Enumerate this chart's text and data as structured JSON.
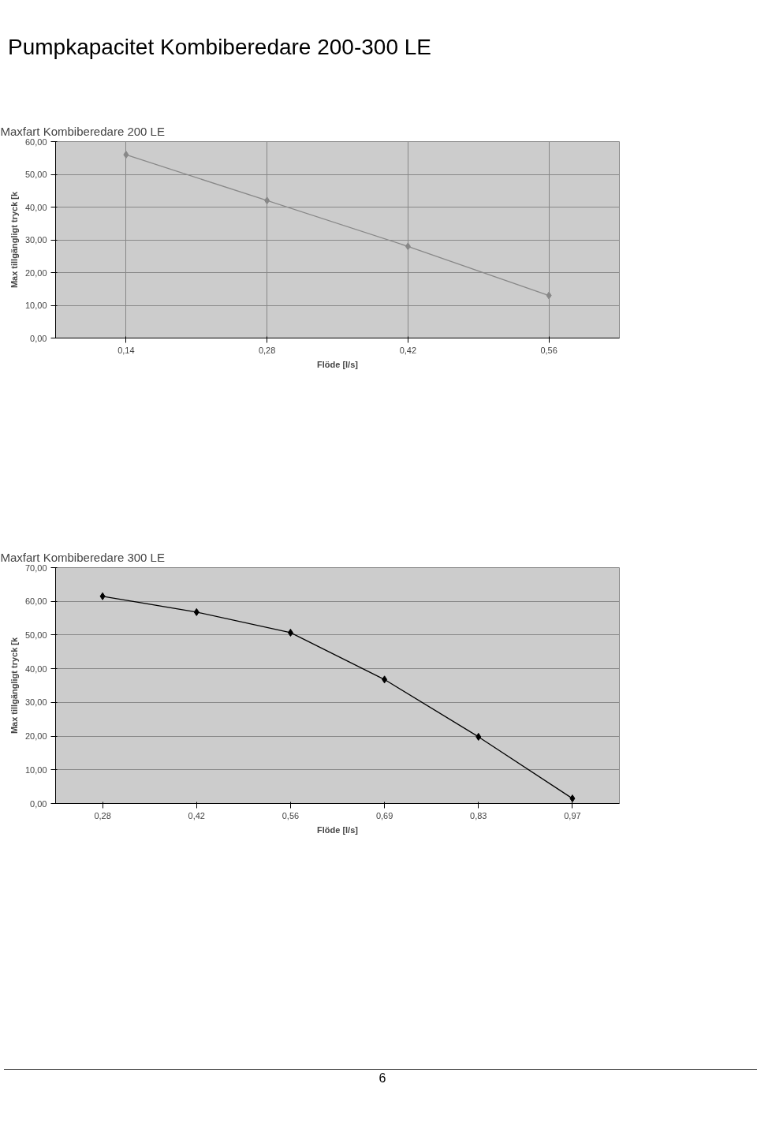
{
  "chart_data": [
    {
      "type": "line",
      "title": "Maxfart Kombiberedare 200 LE",
      "xlabel": "Flöde [l/s]",
      "ylabel": "Max tillgängligt tryck [k",
      "annotations": [
        "Pumpkapacitet Kombiberedare 200-300 LE"
      ],
      "categories": [
        "0,14",
        "0,28",
        "0,42",
        "0,56"
      ],
      "series": [
        {
          "color": "#888888",
          "values": [
            56,
            42,
            28,
            13
          ]
        }
      ],
      "ylim": [
        0,
        60
      ],
      "yticks": [
        {
          "value": 0,
          "label": "0,00"
        },
        {
          "value": 10,
          "label": "10,00"
        },
        {
          "value": 20,
          "label": "20,00"
        },
        {
          "value": 30,
          "label": "30,00"
        },
        {
          "value": 40,
          "label": "40,00"
        },
        {
          "value": 50,
          "label": "50,00"
        },
        {
          "value": 60,
          "label": "60,00"
        }
      ],
      "grid": true,
      "marker": "diamond",
      "line_style": "solid"
    },
    {
      "type": "line",
      "title": "Maxfart Kombiberedare 300 LE",
      "xlabel": "Flöde [l/s]",
      "ylabel": "Max tillgängligt tryck [k",
      "annotations": [
        "6"
      ],
      "categories": [
        "0,28",
        "0,42",
        "0,56",
        "0,69",
        "0,83",
        "0,97"
      ],
      "series": [
        {
          "color": "#000000",
          "values": [
            61.5,
            56.8,
            50.7,
            36.8,
            19.8,
            1.5
          ]
        }
      ],
      "ylim": [
        0,
        70
      ],
      "yticks": [
        {
          "value": 0,
          "label": "0,00"
        },
        {
          "value": 10,
          "label": "10,00"
        },
        {
          "value": 20,
          "label": "20,00"
        },
        {
          "value": 30,
          "label": "30,00"
        },
        {
          "value": 40,
          "label": "40,00"
        },
        {
          "value": 50,
          "label": "50,00"
        },
        {
          "value": 60,
          "label": "60,00"
        },
        {
          "value": 70,
          "label": "70,00"
        }
      ],
      "grid": "y",
      "marker": "diamond",
      "line_style": "solid"
    }
  ]
}
